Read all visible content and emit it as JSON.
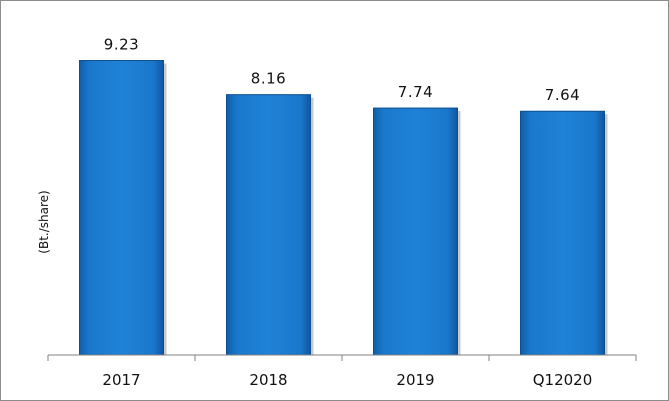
{
  "chart_data": {
    "type": "bar",
    "categories": [
      "2017",
      "2018",
      "2019",
      "Q12020"
    ],
    "values": [
      9.23,
      8.16,
      7.74,
      7.64
    ],
    "data_labels": [
      "9.23",
      "8.16",
      "7.74",
      "7.64"
    ],
    "title": "",
    "xlabel": "",
    "ylabel": "(Bt./share)",
    "ylim": [
      0,
      10.5
    ],
    "grid": false,
    "legend": "none",
    "bar_color": "#1a75c9",
    "bar_edge_color": "#0d4f8f"
  }
}
